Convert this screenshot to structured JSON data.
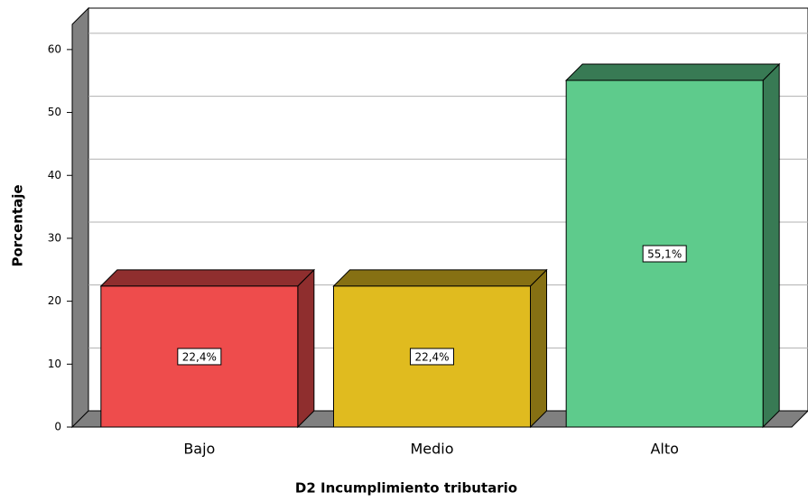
{
  "chart_data": {
    "type": "bar",
    "categories": [
      "Bajo",
      "Medio",
      "Alto"
    ],
    "values": [
      22.4,
      22.4,
      55.1
    ],
    "value_labels": [
      "22,4%",
      "22,4%",
      "55,1%"
    ],
    "colors": [
      "#ee4c4c",
      "#e0bb1f",
      "#5ecb8c"
    ],
    "ylabel": "Porcentaje",
    "xlabel": "D2 Incumplimiento tributario",
    "ylim": [
      0,
      64
    ],
    "yticks": [
      0,
      10,
      20,
      30,
      40,
      50,
      60
    ],
    "grid": true
  }
}
